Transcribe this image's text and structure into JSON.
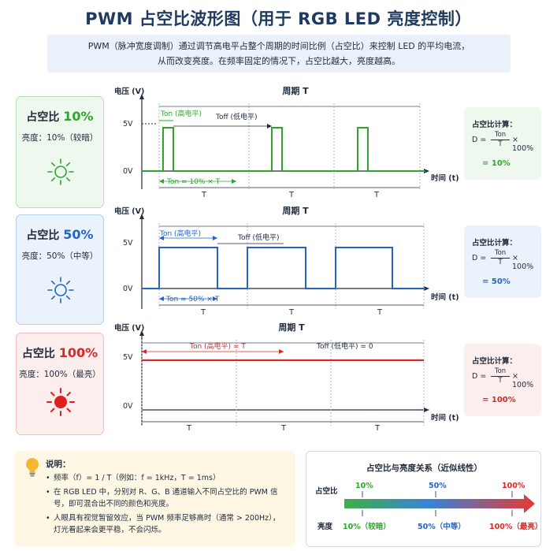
{
  "title": "PWM 占空比波形图（用于 RGB LED 亮度控制）",
  "intro": {
    "line1": "PWM（脉冲宽度调制）通过调节高电平占整个周期的时间比例（占空比）来控制 LED 的平均电流，",
    "line2": "从而改变亮度。在频率固定的情况下，占空比越大，亮度越高。"
  },
  "colors": {
    "green": "#2ea62e",
    "blue": "#2563c7",
    "red": "#d62828",
    "title": "#1f3a5f"
  },
  "rows": [
    {
      "duty_label": "占空比",
      "duty_value": "10%",
      "brightness": "亮度：10%（较暗）",
      "ylabel": "电压 (V)",
      "period_label": "周期 T",
      "v_high": "5V",
      "v_low": "0V",
      "xlabel": "时间 (t)",
      "ton_label": "Ton (高电平)",
      "toff_label": "Toff (低电平)",
      "ton_formula": "Ton = 10% × T",
      "t_labels": [
        "T",
        "T",
        "T"
      ],
      "calc_title": "占空比计算：",
      "calc_result": "= 10%"
    },
    {
      "duty_label": "占空比",
      "duty_value": "50%",
      "brightness": "亮度：50%（中等）",
      "ylabel": "电压 (V)",
      "period_label": "周期 T",
      "v_high": "5V",
      "v_low": "0V",
      "xlabel": "时间 (t)",
      "ton_label": "Ton (高电平)",
      "toff_label": "Toff (低电平)",
      "ton_formula": "Ton = 50% × T",
      "t_labels": [
        "T",
        "T",
        "T"
      ],
      "calc_title": "占空比计算：",
      "calc_result": "= 50%"
    },
    {
      "duty_label": "占空比",
      "duty_value": "100%",
      "brightness": "亮度：100%（最亮）",
      "ylabel": "电压 (V)",
      "period_label": "周期 T",
      "v_high": "5V",
      "v_low": "0V",
      "xlabel": "时间 (t)",
      "ton_label": "Ton (高电平) = T",
      "toff_label": "Toff (低电平) = 0",
      "ton_formula": "",
      "t_labels": [
        "T",
        "T",
        "T"
      ],
      "calc_title": "占空比计算：",
      "calc_result": "= 100%"
    }
  ],
  "formula": {
    "lhs": "D =",
    "num": "Ton",
    "den": "T",
    "mul": "× 100%"
  },
  "note": {
    "title": "说明：",
    "items": [
      "频率（f）= 1 / T（例如：f = 1kHz，T = 1ms）",
      "在 RGB LED 中，分别对 R、G、B 通道输入不同占空比的 PWM 信号，即可混合出不同的颜色和亮度。",
      "人眼具有视觉暂留效应，当 PWM 频率足够高时（通常 > 200Hz），灯光看起来会更平稳，不会闪烁。"
    ]
  },
  "relation": {
    "title": "占空比与亮度关系（近似线性）",
    "duty_label": "占空比",
    "bright_label": "亮度",
    "points": [
      {
        "duty": "10%",
        "bright": "10%（较暗）"
      },
      {
        "duty": "50%",
        "bright": "50%（中等）"
      },
      {
        "duty": "100%",
        "bright": "100%（最亮）"
      }
    ]
  }
}
